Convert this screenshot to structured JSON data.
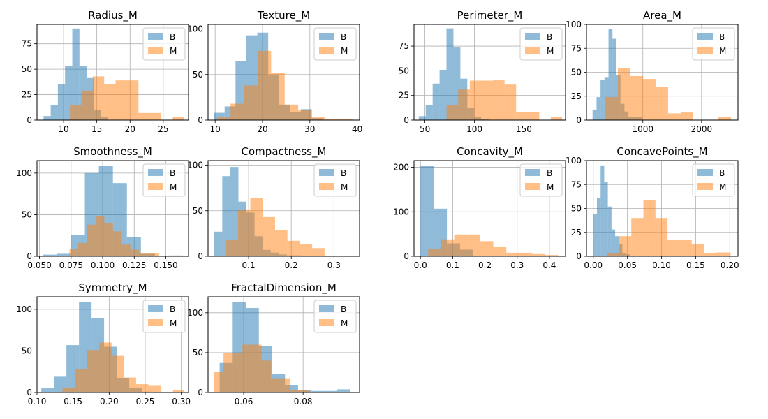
{
  "chart_data": [
    {
      "type": "histogram",
      "title": "Radius_M",
      "xlim": [
        6,
        28.8
      ],
      "ylim": [
        0,
        94
      ],
      "xticks": [
        10,
        15,
        20,
        25
      ],
      "yticks": [
        0,
        25,
        50,
        75
      ],
      "grid": true,
      "legend": "top-right",
      "series": [
        {
          "name": "B",
          "color": "#1f77b4",
          "edges": [
            6.98,
            8.06,
            9.14,
            10.22,
            11.31,
            12.39,
            13.47,
            14.55,
            15.63,
            16.72,
            17.8
          ],
          "counts": [
            4,
            15,
            35,
            53,
            90,
            53,
            42,
            10,
            3,
            0
          ]
        },
        {
          "name": "M",
          "color": "#ff7f0e",
          "edges": [
            10.95,
            12.67,
            14.39,
            16.11,
            17.83,
            19.55,
            21.27,
            22.99,
            24.71,
            26.43,
            28.15
          ],
          "counts": [
            15,
            29,
            43,
            35,
            39,
            39,
            7,
            7,
            0,
            3
          ]
        }
      ]
    },
    {
      "type": "histogram",
      "title": "Texture_M",
      "xlim": [
        8.5,
        40.5
      ],
      "ylim": [
        0,
        105
      ],
      "xticks": [
        10,
        20,
        30,
        40
      ],
      "yticks": [
        0,
        50,
        100
      ],
      "grid": true,
      "legend": "top-right",
      "series": [
        {
          "name": "B",
          "color": "#1f77b4",
          "edges": [
            9.71,
            12.0,
            14.3,
            16.6,
            18.9,
            21.2,
            23.5,
            25.8,
            28.1,
            30.4,
            32.7
          ],
          "counts": [
            8,
            15,
            65,
            93,
            96,
            50,
            17,
            9,
            12,
            2
          ]
        },
        {
          "name": "M",
          "color": "#ff7f0e",
          "edges": [
            10.38,
            13.24,
            16.1,
            18.96,
            21.82,
            24.68,
            27.54,
            30.4,
            33.26,
            36.12,
            39.0
          ],
          "counts": [
            3,
            18,
            38,
            76,
            52,
            17,
            11,
            3,
            1,
            1
          ]
        }
      ]
    },
    {
      "type": "histogram",
      "title": "Perimeter_M",
      "xlim": [
        39,
        192
      ],
      "ylim": [
        0,
        97
      ],
      "xticks": [
        50,
        100,
        150
      ],
      "yticks": [
        0,
        25,
        50,
        75
      ],
      "grid": true,
      "legend": "top-right",
      "series": [
        {
          "name": "B",
          "color": "#1f77b4",
          "edges": [
            43.8,
            50.8,
            57.8,
            64.8,
            71.8,
            78.8,
            85.8,
            92.8,
            99.8,
            106.8,
            114.6
          ],
          "counts": [
            4,
            15,
            37,
            51,
            93,
            74,
            42,
            12,
            3,
            1
          ]
        },
        {
          "name": "M",
          "color": "#ff7f0e",
          "edges": [
            71.9,
            83.6,
            95.3,
            107.0,
            118.7,
            130.4,
            142.1,
            153.8,
            165.5,
            177.2,
            188.5
          ],
          "counts": [
            15,
            31,
            40,
            40,
            41,
            36,
            8,
            8,
            0,
            3
          ]
        }
      ]
    },
    {
      "type": "histogram",
      "title": "Area_M",
      "xlim": [
        40,
        2620
      ],
      "ylim": [
        0,
        100
      ],
      "xticks": [
        1000,
        2000
      ],
      "yticks": [
        0,
        25,
        50,
        75,
        100
      ],
      "grid": true,
      "legend": "top-right",
      "series": [
        {
          "name": "B",
          "color": "#1f77b4",
          "edges": [
            143.5,
            211.4,
            279.3,
            347.2,
            415.1,
            483.0,
            550.9,
            618.8,
            686.7,
            754.6,
            992.1
          ],
          "counts": [
            11,
            24,
            42,
            45,
            95,
            85,
            47,
            17,
            9,
            3
          ]
        },
        {
          "name": "M",
          "color": "#ff7f0e",
          "edges": [
            361.6,
            575.3,
            789.0,
            1002.7,
            1216.4,
            1430.1,
            1643.8,
            1857.5,
            2071.2,
            2284.9,
            2501.0
          ],
          "counts": [
            24,
            54,
            46,
            43,
            35,
            7,
            8,
            0,
            0,
            3
          ]
        }
      ]
    },
    {
      "type": "histogram",
      "title": "Smoothness_M",
      "xlim": [
        0.048,
        0.168
      ],
      "ylim": [
        0,
        115
      ],
      "xticks": [
        0.05,
        0.075,
        0.1,
        0.125,
        0.15
      ],
      "yticks": [
        0,
        50,
        100
      ],
      "grid": true,
      "legend": "top-right",
      "series": [
        {
          "name": "B",
          "color": "#1f77b4",
          "edges": [
            0.0526,
            0.0637,
            0.0748,
            0.0859,
            0.097,
            0.1081,
            0.1192,
            0.1303,
            0.1414,
            0.1525,
            0.1634
          ],
          "counts": [
            2,
            3,
            26,
            100,
            109,
            88,
            23,
            3,
            0,
            1
          ]
        },
        {
          "name": "M",
          "color": "#ff7f0e",
          "edges": [
            0.0737,
            0.0806,
            0.0875,
            0.0944,
            0.1013,
            0.1082,
            0.1151,
            0.122,
            0.1289,
            0.1358,
            0.1447
          ],
          "counts": [
            9,
            16,
            38,
            48,
            40,
            30,
            14,
            8,
            4,
            4
          ]
        }
      ]
    },
    {
      "type": "histogram",
      "title": "Compactness_M",
      "xlim": [
        0.005,
        0.36
      ],
      "ylim": [
        0,
        105
      ],
      "xticks": [
        0.1,
        0.2,
        0.3
      ],
      "yticks": [
        0,
        50,
        100
      ],
      "grid": true,
      "legend": "top-right",
      "series": [
        {
          "name": "B",
          "color": "#1f77b4",
          "edges": [
            0.0194,
            0.0383,
            0.0572,
            0.0761,
            0.095,
            0.1139,
            0.1328,
            0.1517,
            0.1706,
            0.1895,
            0.2239
          ],
          "counts": [
            27,
            88,
            98,
            60,
            48,
            22,
            7,
            4,
            2,
            1
          ]
        },
        {
          "name": "M",
          "color": "#ff7f0e",
          "edges": [
            0.046,
            0.075,
            0.104,
            0.133,
            0.162,
            0.191,
            0.22,
            0.249,
            0.278,
            0.307,
            0.3454
          ],
          "counts": [
            18,
            51,
            64,
            43,
            29,
            17,
            13,
            9,
            0,
            0
          ]
        }
      ]
    },
    {
      "type": "histogram",
      "title": "Concavity_M",
      "xlim": [
        -0.02,
        0.45
      ],
      "ylim": [
        0,
        215
      ],
      "xticks": [
        0.0,
        0.1,
        0.2,
        0.3,
        0.4
      ],
      "yticks": [
        0,
        100,
        200
      ],
      "grid": true,
      "legend": "top-right",
      "series": [
        {
          "name": "B",
          "color": "#1f77b4",
          "edges": [
            0.0,
            0.041,
            0.082,
            0.123,
            0.164,
            0.205,
            0.246,
            0.287,
            0.328,
            0.369,
            0.41
          ],
          "counts": [
            204,
            107,
            29,
            15,
            0,
            0,
            0,
            0,
            0,
            0
          ]
        },
        {
          "name": "M",
          "color": "#ff7f0e",
          "edges": [
            0.024,
            0.0644,
            0.1048,
            0.1452,
            0.1856,
            0.226,
            0.2664,
            0.3068,
            0.3472,
            0.3876,
            0.4268
          ],
          "counts": [
            16,
            38,
            49,
            49,
            34,
            21,
            8,
            8,
            5,
            3
          ]
        }
      ]
    },
    {
      "type": "histogram",
      "title": "ConcavePoints_M",
      "xlim": [
        -0.01,
        0.212
      ],
      "ylim": [
        0,
        100
      ],
      "xticks": [
        0.0,
        0.05,
        0.1,
        0.15,
        0.2
      ],
      "yticks": [
        0,
        25,
        50,
        75,
        100
      ],
      "grid": true,
      "legend": "top-right",
      "series": [
        {
          "name": "B",
          "color": "#1f77b4",
          "edges": [
            0.0,
            0.0053,
            0.0107,
            0.016,
            0.0213,
            0.0267,
            0.032,
            0.0373,
            0.0427,
            0.048,
            0.0534
          ],
          "counts": [
            44,
            61,
            95,
            78,
            52,
            28,
            21,
            13,
            3,
            2
          ]
        },
        {
          "name": "M",
          "color": "#ff7f0e",
          "edges": [
            0.0203,
            0.038,
            0.0557,
            0.0734,
            0.0911,
            0.1088,
            0.1265,
            0.1442,
            0.1619,
            0.1796,
            0.2012
          ],
          "counts": [
            3,
            21,
            40,
            59,
            40,
            17,
            17,
            13,
            3,
            4
          ]
        }
      ]
    },
    {
      "type": "histogram",
      "title": "Symmetry_M",
      "xlim": [
        0.1,
        0.31
      ],
      "ylim": [
        0,
        115
      ],
      "xticks": [
        0.1,
        0.15,
        0.2,
        0.25,
        0.3
      ],
      "yticks": [
        0,
        50,
        100
      ],
      "grid": true,
      "legend": "top-right",
      "series": [
        {
          "name": "B",
          "color": "#1f77b4",
          "edges": [
            0.106,
            0.1234,
            0.1408,
            0.1582,
            0.1756,
            0.193,
            0.2104,
            0.2278,
            0.2452,
            0.2626,
            0.2743
          ],
          "counts": [
            5,
            19,
            57,
            109,
            89,
            55,
            17,
            5,
            1,
            0
          ]
        },
        {
          "name": "M",
          "color": "#ff7f0e",
          "edges": [
            0.1353,
            0.1523,
            0.1693,
            0.1863,
            0.2033,
            0.2203,
            0.2373,
            0.2543,
            0.2713,
            0.2883,
            0.304
          ],
          "counts": [
            6,
            28,
            51,
            60,
            44,
            18,
            10,
            8,
            0,
            3
          ]
        }
      ]
    },
    {
      "type": "histogram",
      "title": "FractalDimension_M",
      "xlim": [
        0.048,
        0.099
      ],
      "ylim": [
        0,
        120
      ],
      "xticks": [
        0.06,
        0.08
      ],
      "yticks": [
        0,
        50,
        100
      ],
      "grid": true,
      "legend": "top-right",
      "series": [
        {
          "name": "B",
          "color": "#1f77b4",
          "edges": [
            0.0519,
            0.0563,
            0.0607,
            0.0651,
            0.0695,
            0.0739,
            0.0783,
            0.0827,
            0.0871,
            0.0915,
            0.0959
          ],
          "counts": [
            37,
            113,
            106,
            58,
            23,
            9,
            3,
            2,
            2,
            4
          ]
        },
        {
          "name": "M",
          "color": "#ff7f0e",
          "edges": [
            0.05,
            0.0532,
            0.0564,
            0.0596,
            0.0628,
            0.066,
            0.0692,
            0.0724,
            0.0756,
            0.0788,
            0.0823
          ],
          "counts": [
            26,
            50,
            50,
            60,
            60,
            40,
            17,
            17,
            3,
            3
          ]
        }
      ]
    }
  ]
}
